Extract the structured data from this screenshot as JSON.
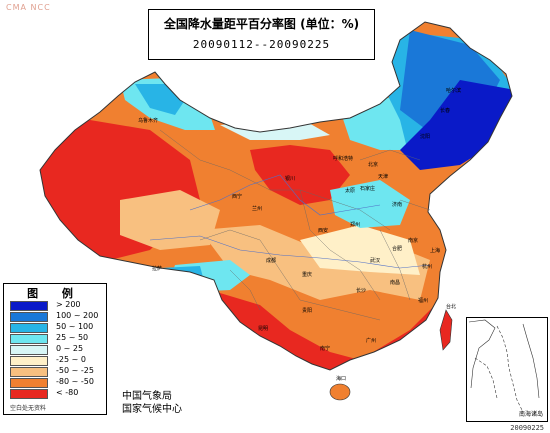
{
  "watermark": "CMA NCC",
  "title": {
    "line1": "全国降水量距平百分率图 (单位：%)",
    "line2": "20090112--20090225"
  },
  "legend": {
    "heading": "图 例",
    "items": [
      {
        "label": "> 200",
        "color": "#0a1ac8"
      },
      {
        "label": "100 ~ 200",
        "color": "#1a78d8"
      },
      {
        "label": "50 ~ 100",
        "color": "#28b4e6"
      },
      {
        "label": "25 ~ 50",
        "color": "#6ee6f0"
      },
      {
        "label": "0 ~ 25",
        "color": "#d8f6f6"
      },
      {
        "label": "-25 ~ 0",
        "color": "#fff0c8"
      },
      {
        "label": "-50 ~ -25",
        "color": "#f8c080"
      },
      {
        "label": "-80 ~ -50",
        "color": "#f08030"
      },
      {
        "label": "< -80",
        "color": "#e82820"
      }
    ],
    "nodata_label": "空白处无资料"
  },
  "organization": {
    "line1": "中国气象局",
    "line2": "国家气候中心"
  },
  "inset": {
    "label": "南海诸岛"
  },
  "issue_date": "20090225",
  "cities": [
    {
      "name": "乌鲁木齐"
    },
    {
      "name": "哈尔滨"
    },
    {
      "name": "长春"
    },
    {
      "name": "沈阳"
    },
    {
      "name": "呼和浩特"
    },
    {
      "name": "北京"
    },
    {
      "name": "天津"
    },
    {
      "name": "石家庄"
    },
    {
      "name": "太原"
    },
    {
      "name": "银川"
    },
    {
      "name": "西宁"
    },
    {
      "name": "兰州"
    },
    {
      "name": "济南"
    },
    {
      "name": "郑州"
    },
    {
      "name": "西安"
    },
    {
      "name": "南京"
    },
    {
      "name": "合肥"
    },
    {
      "name": "上海"
    },
    {
      "name": "武汉"
    },
    {
      "name": "杭州"
    },
    {
      "name": "成都"
    },
    {
      "name": "重庆"
    },
    {
      "name": "长沙"
    },
    {
      "name": "南昌"
    },
    {
      "name": "福州"
    },
    {
      "name": "台北"
    },
    {
      "name": "贵阳"
    },
    {
      "name": "昆明"
    },
    {
      "name": "南宁"
    },
    {
      "name": "广州"
    },
    {
      "name": "海口"
    },
    {
      "name": "拉萨"
    }
  ]
}
